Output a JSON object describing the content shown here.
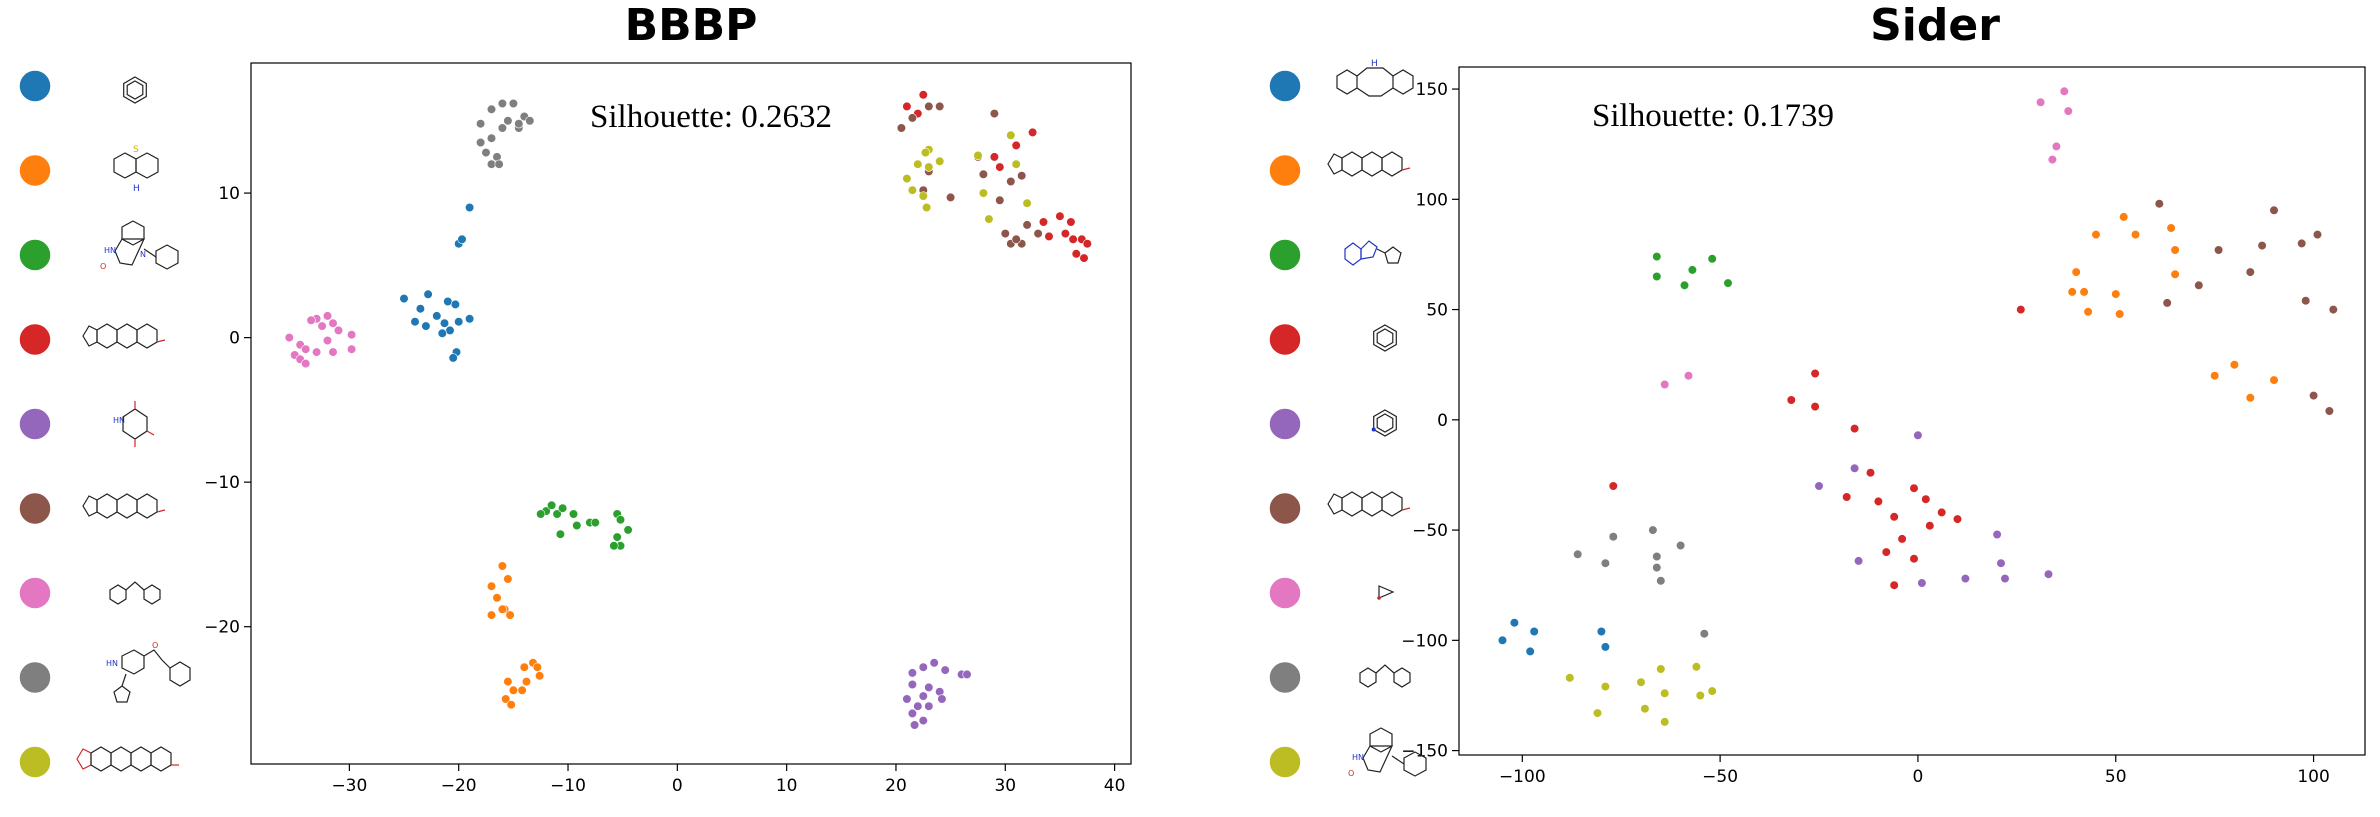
{
  "chart_data": [
    {
      "type": "scatter",
      "title": "BBBP",
      "annotation": "Silhouette: 0.2632",
      "xlim": [
        -39,
        41.5
      ],
      "ylim": [
        -29.5,
        19
      ],
      "xticks": [
        -30,
        -20,
        -10,
        0,
        10,
        20,
        30,
        40
      ],
      "yticks": [
        -20,
        -10,
        0,
        10
      ],
      "grid": false,
      "legend": "left, colored circles with molecule structure images",
      "legend_colors": [
        "#1f77b4",
        "#ff7f0e",
        "#2ca02c",
        "#d62728",
        "#9467bd",
        "#8c564b",
        "#e377c2",
        "#7f7f7f",
        "#bcbd22"
      ],
      "series": [
        {
          "color": "#1f77b4",
          "points": [
            [
              -25,
              2.7
            ],
            [
              -23.5,
              2
            ],
            [
              -22.8,
              3
            ],
            [
              -21,
              2.5
            ],
            [
              -20.3,
              2.3
            ],
            [
              -22,
              1.5
            ],
            [
              -21.3,
              1
            ],
            [
              -24,
              1.1
            ],
            [
              -23,
              0.8
            ],
            [
              -20.8,
              0.5
            ],
            [
              -19,
              1.3
            ],
            [
              -20,
              1.1
            ],
            [
              -21.5,
              0.3
            ],
            [
              -20.2,
              -1
            ],
            [
              -20.5,
              -1.4
            ],
            [
              -20,
              6.5
            ],
            [
              -19.7,
              6.8
            ],
            [
              -19,
              9
            ]
          ]
        },
        {
          "color": "#ff7f0e",
          "points": [
            [
              -16,
              -15.8
            ],
            [
              -15.5,
              -16.7
            ],
            [
              -17,
              -17.2
            ],
            [
              -16.5,
              -18
            ],
            [
              -15.8,
              -18.8
            ],
            [
              -17,
              -19.2
            ],
            [
              -15.3,
              -19.2
            ],
            [
              -16,
              -18.8
            ],
            [
              -13.2,
              -22.5
            ],
            [
              -14,
              -22.8
            ],
            [
              -12.8,
              -22.8
            ],
            [
              -12.6,
              -23.4
            ],
            [
              -13.8,
              -23.8
            ],
            [
              -14.2,
              -24.4
            ],
            [
              -15,
              -24.4
            ],
            [
              -15.5,
              -23.8
            ],
            [
              -15.7,
              -25
            ],
            [
              -15.2,
              -25.4
            ]
          ]
        },
        {
          "color": "#2ca02c",
          "points": [
            [
              -12,
              -12
            ],
            [
              -11.5,
              -11.6
            ],
            [
              -11,
              -12.2
            ],
            [
              -12.5,
              -12.2
            ],
            [
              -10.5,
              -11.8
            ],
            [
              -9.5,
              -12.2
            ],
            [
              -9.2,
              -13
            ],
            [
              -10.7,
              -13.6
            ],
            [
              -8,
              -12.8
            ],
            [
              -7.5,
              -12.8
            ],
            [
              -5.5,
              -12.2
            ],
            [
              -5.2,
              -12.6
            ],
            [
              -4.5,
              -13.3
            ],
            [
              -5.5,
              -13.8
            ],
            [
              -5.2,
              -14.4
            ],
            [
              -5.8,
              -14.4
            ]
          ]
        },
        {
          "color": "#d62728",
          "points": [
            [
              21,
              16
            ],
            [
              22.5,
              16.8
            ],
            [
              22,
              15.5
            ],
            [
              29,
              12.5
            ],
            [
              29.5,
              11.8
            ],
            [
              31,
              13.3
            ],
            [
              32.5,
              14.2
            ],
            [
              33.5,
              8
            ],
            [
              34,
              7
            ],
            [
              35,
              8.4
            ],
            [
              36,
              8
            ],
            [
              36.2,
              6.8
            ],
            [
              37,
              6.8
            ],
            [
              37.5,
              6.5
            ],
            [
              36.5,
              5.8
            ],
            [
              37.2,
              5.5
            ],
            [
              35.5,
              7.2
            ]
          ]
        },
        {
          "color": "#9467bd",
          "points": [
            [
              22.5,
              -22.8
            ],
            [
              23.5,
              -22.5
            ],
            [
              21.5,
              -23.2
            ],
            [
              24.5,
              -23
            ],
            [
              21.5,
              -24
            ],
            [
              23,
              -24.2
            ],
            [
              22.5,
              -24.8
            ],
            [
              24,
              -24.5
            ],
            [
              21,
              -25
            ],
            [
              22,
              -25.5
            ],
            [
              23,
              -25.5
            ],
            [
              24.2,
              -25
            ],
            [
              21.5,
              -26
            ],
            [
              22.5,
              -26.5
            ],
            [
              21.7,
              -26.8
            ],
            [
              26,
              -23.3
            ],
            [
              26.5,
              -23.3
            ]
          ]
        },
        {
          "color": "#8c564b",
          "points": [
            [
              20.5,
              14.5
            ],
            [
              21.5,
              15.2
            ],
            [
              23,
              16
            ],
            [
              24,
              16
            ],
            [
              29,
              15.5
            ],
            [
              27.5,
              12.5
            ],
            [
              28,
              11.3
            ],
            [
              29.5,
              9.5
            ],
            [
              31.5,
              11.2
            ],
            [
              30.5,
              10.8
            ],
            [
              32,
              7.8
            ],
            [
              33,
              7.2
            ],
            [
              31.5,
              6.5
            ],
            [
              30.5,
              6.5
            ],
            [
              31,
              6.8
            ],
            [
              30,
              7.2
            ],
            [
              25,
              9.7
            ],
            [
              22.5,
              10.2
            ],
            [
              23,
              11.5
            ]
          ]
        },
        {
          "color": "#e377c2",
          "points": [
            [
              -34.5,
              -0.5
            ],
            [
              -34,
              -0.8
            ],
            [
              -35,
              -1.2
            ],
            [
              -34.5,
              -1.5
            ],
            [
              -33,
              -1
            ],
            [
              -32,
              -0.2
            ],
            [
              -31.5,
              -1
            ],
            [
              -32.5,
              0.8
            ],
            [
              -33,
              1.3
            ],
            [
              -32,
              1.5
            ],
            [
              -31.5,
              1
            ],
            [
              -31,
              0.5
            ],
            [
              -29.8,
              0.2
            ],
            [
              -29.8,
              -0.8
            ],
            [
              -34,
              -1.8
            ],
            [
              -35.5,
              0
            ],
            [
              -33.5,
              1.2
            ]
          ]
        },
        {
          "color": "#7f7f7f",
          "points": [
            [
              -18,
              13.5
            ],
            [
              -17,
              13.8
            ],
            [
              -16,
              14.5
            ],
            [
              -15.5,
              15
            ],
            [
              -14.5,
              14.5
            ],
            [
              -14,
              15.3
            ],
            [
              -15,
              16.2
            ],
            [
              -16,
              16.2
            ],
            [
              -17,
              15.8
            ],
            [
              -18,
              14.8
            ],
            [
              -17.5,
              12.8
            ],
            [
              -16.5,
              12.5
            ],
            [
              -17,
              12
            ],
            [
              -16.3,
              12
            ],
            [
              -14.5,
              14.8
            ],
            [
              -13.5,
              15
            ]
          ]
        },
        {
          "color": "#bcbd22",
          "points": [
            [
              21,
              11
            ],
            [
              21.5,
              10.2
            ],
            [
              22.5,
              9.8
            ],
            [
              22.8,
              9
            ],
            [
              23,
              11.8
            ],
            [
              24,
              12.2
            ],
            [
              22,
              12
            ],
            [
              27.5,
              12.6
            ],
            [
              30.5,
              14
            ],
            [
              31,
              12
            ],
            [
              28,
              10
            ],
            [
              28.5,
              8.2
            ],
            [
              32,
              9.3
            ],
            [
              23,
              13
            ],
            [
              22.7,
              12.8
            ]
          ]
        }
      ]
    },
    {
      "type": "scatter",
      "title": "Sider",
      "annotation": "Silhouette: 0.1739",
      "xlim": [
        -116,
        113
      ],
      "ylim": [
        -152,
        160
      ],
      "xticks": [
        -100,
        -50,
        0,
        50,
        100
      ],
      "yticks": [
        -150,
        -100,
        -50,
        0,
        50,
        100,
        150
      ],
      "grid": false,
      "legend": "left, colored circles with molecule structure images",
      "legend_colors": [
        "#1f77b4",
        "#ff7f0e",
        "#2ca02c",
        "#d62728",
        "#9467bd",
        "#8c564b",
        "#e377c2",
        "#7f7f7f",
        "#bcbd22"
      ],
      "series": [
        {
          "color": "#1f77b4",
          "points": [
            [
              -105,
              -100
            ],
            [
              -102,
              -92
            ],
            [
              -97,
              -96
            ],
            [
              -98,
              -105
            ],
            [
              -80,
              -96
            ],
            [
              -79,
              -103
            ]
          ]
        },
        {
          "color": "#ff7f0e",
          "points": [
            [
              45,
              84
            ],
            [
              52,
              92
            ],
            [
              55,
              84
            ],
            [
              64,
              87
            ],
            [
              65,
              77
            ],
            [
              40,
              67
            ],
            [
              42,
              58
            ],
            [
              43,
              49
            ],
            [
              50,
              57
            ],
            [
              51,
              48
            ],
            [
              39,
              58
            ],
            [
              65,
              66
            ],
            [
              75,
              20
            ],
            [
              80,
              25
            ],
            [
              84,
              10
            ],
            [
              90,
              18
            ]
          ]
        },
        {
          "color": "#2ca02c",
          "points": [
            [
              -66,
              74
            ],
            [
              -66,
              65
            ],
            [
              -59,
              61
            ],
            [
              -57,
              68
            ],
            [
              -52,
              73
            ],
            [
              -48,
              62
            ]
          ]
        },
        {
          "color": "#d62728",
          "points": [
            [
              26,
              50
            ],
            [
              -26,
              21
            ],
            [
              -32,
              9
            ],
            [
              -26,
              6
            ],
            [
              -16,
              -4
            ],
            [
              -77,
              -30
            ],
            [
              -12,
              -24
            ],
            [
              -18,
              -35
            ],
            [
              -10,
              -37
            ],
            [
              -6,
              -44
            ],
            [
              -8,
              -60
            ],
            [
              -1,
              -31
            ],
            [
              2,
              -36
            ],
            [
              3,
              -48
            ],
            [
              -4,
              -54
            ],
            [
              -1,
              -63
            ],
            [
              6,
              -42
            ],
            [
              -6,
              -75
            ],
            [
              10,
              -45
            ]
          ]
        },
        {
          "color": "#9467bd",
          "points": [
            [
              0,
              -7
            ],
            [
              -25,
              -30
            ],
            [
              -16,
              -22
            ],
            [
              -15,
              -64
            ],
            [
              1,
              -74
            ],
            [
              12,
              -72
            ],
            [
              20,
              -52
            ],
            [
              22,
              -72
            ],
            [
              33,
              -70
            ],
            [
              21,
              -65
            ]
          ]
        },
        {
          "color": "#8c564b",
          "points": [
            [
              61,
              98
            ],
            [
              63,
              53
            ],
            [
              71,
              61
            ],
            [
              76,
              77
            ],
            [
              84,
              67
            ],
            [
              87,
              79
            ],
            [
              90,
              95
            ],
            [
              97,
              80
            ],
            [
              98,
              54
            ],
            [
              101,
              84
            ],
            [
              105,
              50
            ],
            [
              104,
              4
            ],
            [
              100,
              11
            ]
          ]
        },
        {
          "color": "#e377c2",
          "points": [
            [
              31,
              144
            ],
            [
              37,
              149
            ],
            [
              38,
              140
            ],
            [
              35,
              124
            ],
            [
              34,
              118
            ],
            [
              -58,
              20
            ],
            [
              -64,
              16
            ]
          ]
        },
        {
          "color": "#7f7f7f",
          "points": [
            [
              -86,
              -61
            ],
            [
              -79,
              -65
            ],
            [
              -77,
              -53
            ],
            [
              -67,
              -50
            ],
            [
              -66,
              -62
            ],
            [
              -65,
              -73
            ],
            [
              -60,
              -57
            ],
            [
              -66,
              -67
            ],
            [
              -54,
              -97
            ]
          ]
        },
        {
          "color": "#bcbd22",
          "points": [
            [
              -88,
              -117
            ],
            [
              -79,
              -121
            ],
            [
              -70,
              -119
            ],
            [
              -65,
              -113
            ],
            [
              -64,
              -124
            ],
            [
              -56,
              -112
            ],
            [
              -55,
              -125
            ],
            [
              -52,
              -123
            ],
            [
              -81,
              -133
            ],
            [
              -69,
              -131
            ],
            [
              -64,
              -137
            ]
          ]
        }
      ]
    }
  ]
}
